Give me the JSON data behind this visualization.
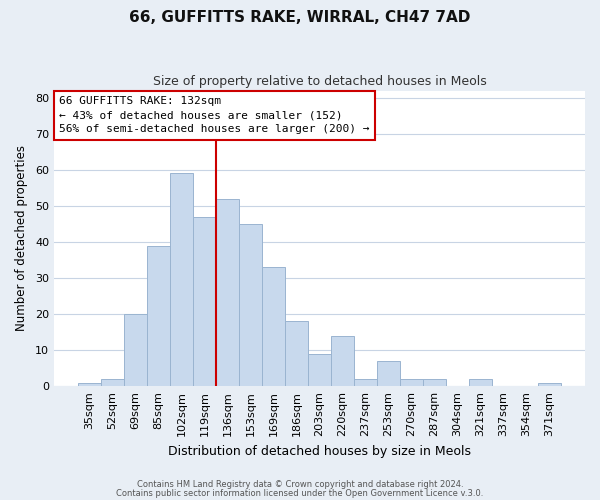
{
  "title": "66, GUFFITTS RAKE, WIRRAL, CH47 7AD",
  "subtitle": "Size of property relative to detached houses in Meols",
  "xlabel": "Distribution of detached houses by size in Meols",
  "ylabel": "Number of detached properties",
  "footer_line1": "Contains HM Land Registry data © Crown copyright and database right 2024.",
  "footer_line2": "Contains public sector information licensed under the Open Government Licence v.3.0.",
  "bar_labels": [
    "35sqm",
    "52sqm",
    "69sqm",
    "85sqm",
    "102sqm",
    "119sqm",
    "136sqm",
    "153sqm",
    "169sqm",
    "186sqm",
    "203sqm",
    "220sqm",
    "237sqm",
    "253sqm",
    "270sqm",
    "287sqm",
    "304sqm",
    "321sqm",
    "337sqm",
    "354sqm",
    "371sqm"
  ],
  "bar_values": [
    1,
    2,
    20,
    39,
    59,
    47,
    52,
    45,
    33,
    18,
    9,
    14,
    2,
    7,
    2,
    2,
    0,
    2,
    0,
    0,
    1
  ],
  "bar_color": "#c8d9ed",
  "bar_edge_color": "#9ab4d0",
  "vline_color": "#cc0000",
  "vline_x_index": 5.5,
  "ylim": [
    0,
    82
  ],
  "yticks": [
    0,
    10,
    20,
    30,
    40,
    50,
    60,
    70,
    80
  ],
  "annotation_title": "66 GUFFITTS RAKE: 132sqm",
  "annotation_line1": "← 43% of detached houses are smaller (152)",
  "annotation_line2": "56% of semi-detached houses are larger (200) →",
  "annotation_box_color": "#ffffff",
  "annotation_box_edge": "#cc0000",
  "bg_color": "#e8eef5",
  "plot_bg_color": "#ffffff",
  "grid_color": "#c8d4e4"
}
